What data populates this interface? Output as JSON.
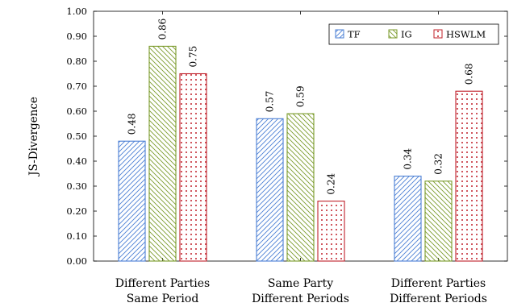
{
  "chart_data": {
    "type": "bar",
    "title": "",
    "xlabel": "",
    "ylabel": "JS-Divergence",
    "ylim": [
      0,
      1
    ],
    "y_ticks": [
      "0.00",
      "0.10",
      "0.20",
      "0.30",
      "0.40",
      "0.50",
      "0.60",
      "0.70",
      "0.80",
      "0.90",
      "1.00"
    ],
    "categories": [
      [
        "Different Parties",
        "Same Period"
      ],
      [
        "Same Party",
        "Different Periods"
      ],
      [
        "Different Parties",
        "Different Periods"
      ]
    ],
    "series": [
      {
        "name": "TF",
        "values": [
          0.48,
          0.57,
          0.34
        ],
        "labels": [
          "0.48",
          "0.57",
          "0.34"
        ],
        "color": "#4a7fd4",
        "pattern": "north-east-lines"
      },
      {
        "name": "IG",
        "values": [
          0.86,
          0.59,
          0.32
        ],
        "labels": [
          "0.86",
          "0.59",
          "0.32"
        ],
        "color": "#7a9a2a",
        "pattern": "north-west-lines"
      },
      {
        "name": "HSWLM",
        "values": [
          0.75,
          0.24,
          0.68
        ],
        "labels": [
          "0.75",
          "0.24",
          "0.68"
        ],
        "color": "#c0202a",
        "pattern": "dots"
      }
    ],
    "legend": "top-right",
    "grid": false
  }
}
